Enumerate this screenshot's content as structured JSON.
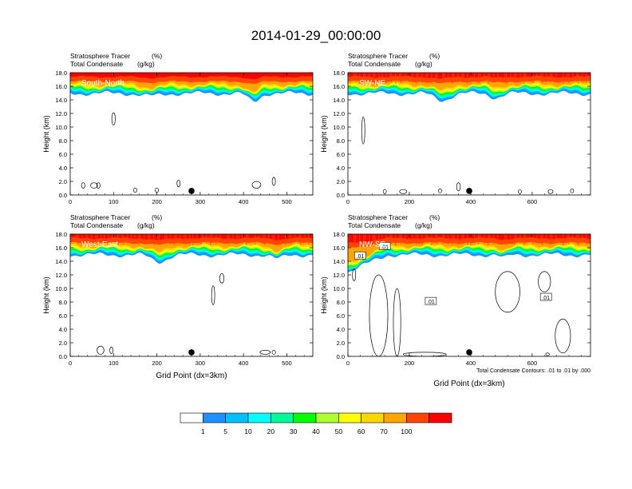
{
  "title": "2014-01-29_00:00:00",
  "colors": {
    "levels": [
      "#ffffff",
      "#1e90ff",
      "#00bfff",
      "#00ffff",
      "#00fa9a",
      "#00ff00",
      "#adff2f",
      "#ffff00",
      "#ffd700",
      "#ffa500",
      "#ff4500",
      "#ff0000"
    ],
    "contour": "#000000",
    "marker": "#000000"
  },
  "colorbar": {
    "labels": [
      "1",
      "5",
      "10",
      "20",
      "30",
      "40",
      "50",
      "60",
      "70",
      "100"
    ]
  },
  "chart_data": [
    {
      "type": "heatmap",
      "panel": "South-North",
      "subtitle_left_1": "Stratosphere Tracer",
      "subtitle_right_1": "(%)",
      "subtitle_left_2": "Total Condensate",
      "subtitle_right_2": "(g/kg)",
      "ylabel": "Height (km)",
      "xlabel": "",
      "xlim": [
        0,
        560
      ],
      "ylim": [
        0,
        18
      ],
      "xticks": [
        "0",
        "100",
        "200",
        "300",
        "400",
        "500"
      ],
      "xtick_values": [
        0,
        100,
        200,
        300,
        400,
        500
      ],
      "yticks": [
        "0.0",
        "2.0",
        "4.0",
        "6.0",
        "8.0",
        "10.0",
        "12.0",
        "14.0",
        "16.0",
        "18.0"
      ],
      "marker_x": 280,
      "tropopause_km": 15.2,
      "contour_label": "",
      "footnote": ""
    },
    {
      "type": "heatmap",
      "panel": "SW-NE",
      "subtitle_left_1": "Stratosphere Tracer",
      "subtitle_right_1": "(%)",
      "subtitle_left_2": "Total Condensate",
      "subtitle_right_2": "(g/kg)",
      "ylabel": "Height (km)",
      "xlabel": "",
      "xlim": [
        0,
        790
      ],
      "ylim": [
        0,
        18
      ],
      "xticks": [
        "0",
        "200",
        "400",
        "600"
      ],
      "xtick_values": [
        0,
        200,
        400,
        600
      ],
      "yticks": [
        "0.0",
        "2.0",
        "4.0",
        "6.0",
        "8.0",
        "10.0",
        "12.0",
        "14.0",
        "16.0",
        "18.0"
      ],
      "marker_x": 395,
      "tropopause_km": 15.0,
      "contour_label": "",
      "footnote": ""
    },
    {
      "type": "heatmap",
      "panel": "West-East",
      "subtitle_left_1": "Stratosphere Tracer",
      "subtitle_right_1": "(%)",
      "subtitle_left_2": "Total Condensate",
      "subtitle_right_2": "(g/kg)",
      "ylabel": "Height (km)",
      "xlabel": "Grid Point (dx=3km)",
      "xlim": [
        0,
        560
      ],
      "ylim": [
        0,
        18
      ],
      "xticks": [
        "0",
        "100",
        "200",
        "300",
        "400",
        "500"
      ],
      "xtick_values": [
        0,
        100,
        200,
        300,
        400,
        500
      ],
      "yticks": [
        "0.0",
        "2.0",
        "4.0",
        "6.0",
        "8.0",
        "10.0",
        "12.0",
        "14.0",
        "16.0",
        "18.0"
      ],
      "marker_x": 280,
      "tropopause_km": 14.5,
      "contour_label": "",
      "footnote": ""
    },
    {
      "type": "heatmap",
      "panel": "NW-SE",
      "subtitle_left_1": "Stratosphere Tracer",
      "subtitle_right_1": "(%)",
      "subtitle_left_2": "Total Condensate",
      "subtitle_right_2": "(g/kg)",
      "ylabel": "Height (km)",
      "xlabel": "Grid Point (dx=3km)",
      "xlim": [
        0,
        790
      ],
      "ylim": [
        0,
        18
      ],
      "xticks": [
        "0",
        "200",
        "400",
        "600"
      ],
      "xtick_values": [
        0,
        200,
        400,
        600
      ],
      "yticks": [
        "0.0",
        "2.0",
        "4.0",
        "6.0",
        "8.0",
        "10.0",
        "12.0",
        "14.0",
        "16.0",
        "18.0"
      ],
      "marker_x": 395,
      "tropopause_km": 14.5,
      "contour_label": ".01",
      "footnote": "Total Condensate Contours: .01 to .01 by .000"
    }
  ]
}
